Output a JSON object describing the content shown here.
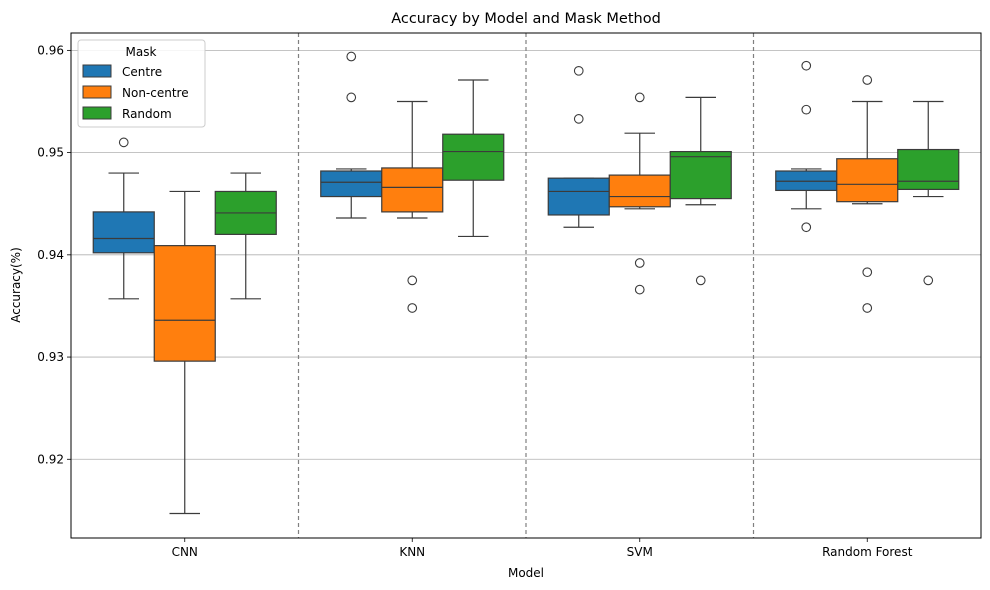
{
  "chart_data": {
    "type": "box",
    "title": "Accuracy by Model and Mask Method",
    "xlabel": "Model",
    "ylabel": "Accuracy(%)",
    "categories": [
      "CNN",
      "KNN",
      "SVM",
      "Random Forest"
    ],
    "ylim": [
      0.9123,
      0.9617
    ],
    "yticks": [
      0.92,
      0.93,
      0.94,
      0.95,
      0.96
    ],
    "ytick_labels": [
      "0.92",
      "0.93",
      "0.94",
      "0.95",
      "0.96"
    ],
    "grid": "horizontal",
    "category_separators": true,
    "legend": {
      "title": "Mask",
      "position": "top-left"
    },
    "series": [
      {
        "name": "Centre",
        "color": "#1f77b4",
        "boxes": [
          {
            "whisker_low": 0.9357,
            "q1": 0.9402,
            "median": 0.9416,
            "q3": 0.9442,
            "whisker_high": 0.948,
            "outliers": [
              0.951
            ]
          },
          {
            "whisker_low": 0.9436,
            "q1": 0.9457,
            "median": 0.9471,
            "q3": 0.9482,
            "whisker_high": 0.9484,
            "outliers": [
              0.9594,
              0.9554
            ]
          },
          {
            "whisker_low": 0.9427,
            "q1": 0.9439,
            "median": 0.9462,
            "q3": 0.9475,
            "whisker_high": 0.9475,
            "outliers": [
              0.958,
              0.9533
            ]
          },
          {
            "whisker_low": 0.9445,
            "q1": 0.9463,
            "median": 0.9472,
            "q3": 0.9482,
            "whisker_high": 0.9484,
            "outliers": [
              0.9585,
              0.9542,
              0.9427
            ]
          }
        ]
      },
      {
        "name": "Non-centre",
        "color": "#ff7f0e",
        "boxes": [
          {
            "whisker_low": 0.9147,
            "q1": 0.9296,
            "median": 0.9336,
            "q3": 0.9409,
            "whisker_high": 0.9462,
            "outliers": []
          },
          {
            "whisker_low": 0.9436,
            "q1": 0.9442,
            "median": 0.9466,
            "q3": 0.9485,
            "whisker_high": 0.955,
            "outliers": [
              0.9375,
              0.9348
            ]
          },
          {
            "whisker_low": 0.9445,
            "q1": 0.9447,
            "median": 0.9457,
            "q3": 0.9478,
            "whisker_high": 0.9519,
            "outliers": [
              0.9554,
              0.9392,
              0.9366
            ]
          },
          {
            "whisker_low": 0.945,
            "q1": 0.9452,
            "median": 0.9469,
            "q3": 0.9494,
            "whisker_high": 0.955,
            "outliers": [
              0.9571,
              0.9383,
              0.9348
            ]
          }
        ]
      },
      {
        "name": "Random",
        "color": "#2ca02c",
        "boxes": [
          {
            "whisker_low": 0.9357,
            "q1": 0.942,
            "median": 0.9441,
            "q3": 0.9462,
            "whisker_high": 0.948,
            "outliers": []
          },
          {
            "whisker_low": 0.9418,
            "q1": 0.9473,
            "median": 0.9501,
            "q3": 0.9518,
            "whisker_high": 0.9571,
            "outliers": []
          },
          {
            "whisker_low": 0.9449,
            "q1": 0.9455,
            "median": 0.9496,
            "q3": 0.9501,
            "whisker_high": 0.9554,
            "outliers": [
              0.9375
            ]
          },
          {
            "whisker_low": 0.9457,
            "q1": 0.9464,
            "median": 0.9472,
            "q3": 0.9503,
            "whisker_high": 0.955,
            "outliers": [
              0.9375
            ]
          }
        ]
      }
    ]
  }
}
